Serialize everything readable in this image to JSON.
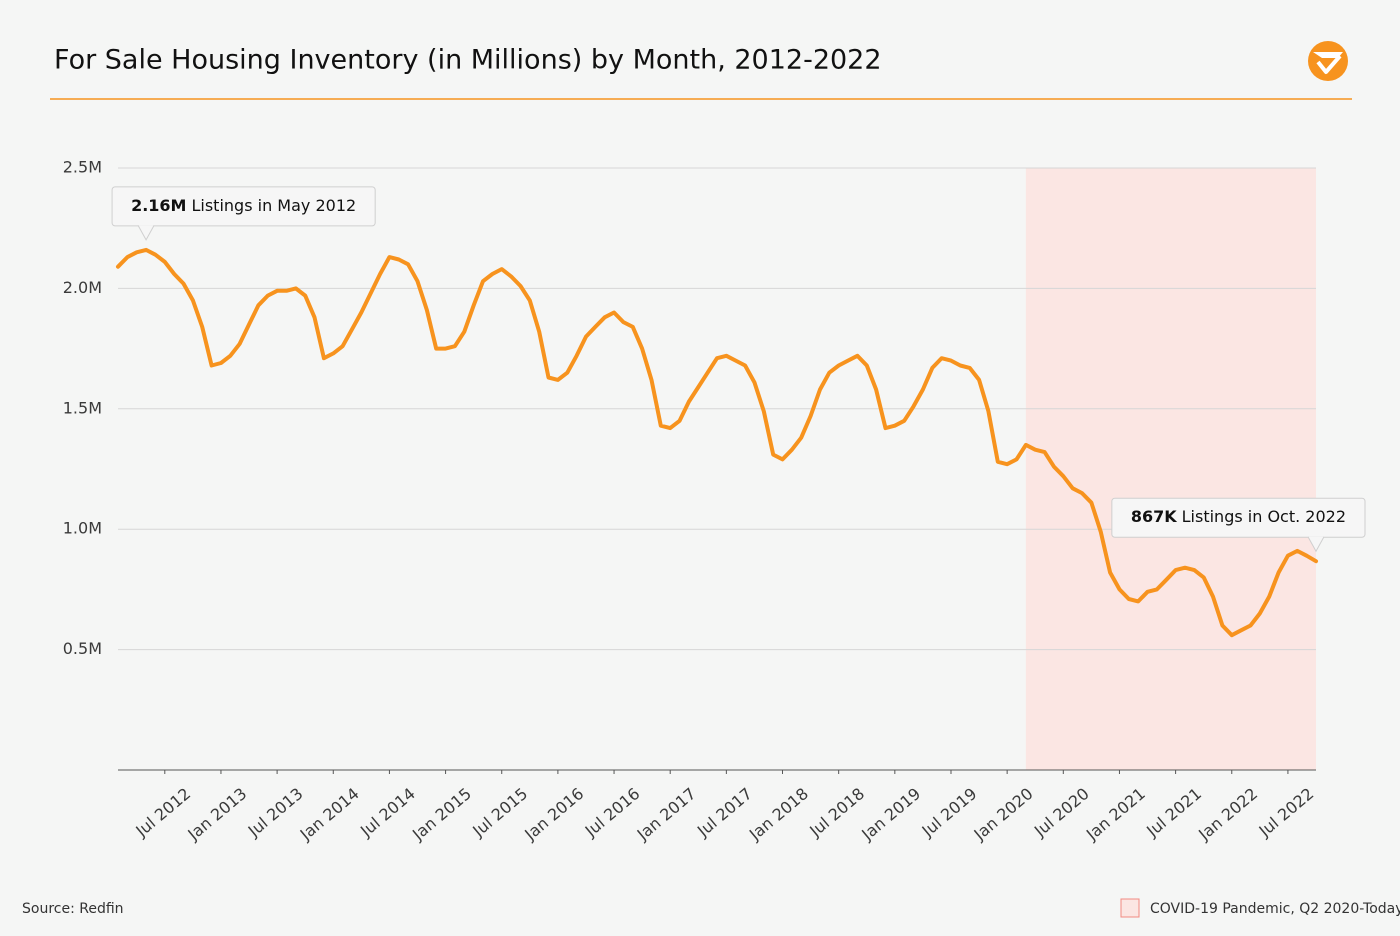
{
  "chart_data": {
    "type": "line",
    "title": "For Sale Housing Inventory (in Millions) by Month, 2012-2022",
    "source": "Source: Redfin",
    "x": [
      "2012-02",
      "2012-03",
      "2012-04",
      "2012-05",
      "2012-06",
      "2012-07",
      "2012-08",
      "2012-09",
      "2012-10",
      "2012-11",
      "2012-12",
      "2013-01",
      "2013-02",
      "2013-03",
      "2013-04",
      "2013-05",
      "2013-06",
      "2013-07",
      "2013-08",
      "2013-09",
      "2013-10",
      "2013-11",
      "2013-12",
      "2014-01",
      "2014-02",
      "2014-03",
      "2014-04",
      "2014-05",
      "2014-06",
      "2014-07",
      "2014-08",
      "2014-09",
      "2014-10",
      "2014-11",
      "2014-12",
      "2015-01",
      "2015-02",
      "2015-03",
      "2015-04",
      "2015-05",
      "2015-06",
      "2015-07",
      "2015-08",
      "2015-09",
      "2015-10",
      "2015-11",
      "2015-12",
      "2016-01",
      "2016-02",
      "2016-03",
      "2016-04",
      "2016-05",
      "2016-06",
      "2016-07",
      "2016-08",
      "2016-09",
      "2016-10",
      "2016-11",
      "2016-12",
      "2017-01",
      "2017-02",
      "2017-03",
      "2017-04",
      "2017-05",
      "2017-06",
      "2017-07",
      "2017-08",
      "2017-09",
      "2017-10",
      "2017-11",
      "2017-12",
      "2018-01",
      "2018-02",
      "2018-03",
      "2018-04",
      "2018-05",
      "2018-06",
      "2018-07",
      "2018-08",
      "2018-09",
      "2018-10",
      "2018-11",
      "2018-12",
      "2019-01",
      "2019-02",
      "2019-03",
      "2019-04",
      "2019-05",
      "2019-06",
      "2019-07",
      "2019-08",
      "2019-09",
      "2019-10",
      "2019-11",
      "2019-12",
      "2020-01",
      "2020-02",
      "2020-03",
      "2020-04",
      "2020-05",
      "2020-06",
      "2020-07",
      "2020-08",
      "2020-09",
      "2020-10",
      "2020-11",
      "2020-12",
      "2021-01",
      "2021-02",
      "2021-03",
      "2021-04",
      "2021-05",
      "2021-06",
      "2021-07",
      "2021-08",
      "2021-09",
      "2021-10",
      "2021-11",
      "2021-12",
      "2022-01",
      "2022-02",
      "2022-03",
      "2022-04",
      "2022-05",
      "2022-06",
      "2022-07",
      "2022-08",
      "2022-09",
      "2022-10"
    ],
    "series": [
      {
        "name": "For Sale Housing Inventory",
        "color": "#f7931e",
        "values": [
          2090000,
          2130000,
          2150000,
          2160000,
          2140000,
          2110000,
          2060000,
          2020000,
          1950000,
          1840000,
          1680000,
          1690000,
          1720000,
          1770000,
          1850000,
          1930000,
          1970000,
          1990000,
          1990000,
          2000000,
          1970000,
          1880000,
          1710000,
          1730000,
          1760000,
          1830000,
          1900000,
          1980000,
          2060000,
          2130000,
          2120000,
          2100000,
          2030000,
          1910000,
          1750000,
          1750000,
          1760000,
          1820000,
          1930000,
          2030000,
          2060000,
          2080000,
          2050000,
          2010000,
          1950000,
          1820000,
          1630000,
          1620000,
          1650000,
          1720000,
          1800000,
          1840000,
          1880000,
          1900000,
          1860000,
          1840000,
          1750000,
          1620000,
          1430000,
          1420000,
          1450000,
          1530000,
          1590000,
          1650000,
          1710000,
          1720000,
          1700000,
          1680000,
          1610000,
          1490000,
          1310000,
          1290000,
          1330000,
          1380000,
          1470000,
          1580000,
          1650000,
          1680000,
          1700000,
          1720000,
          1680000,
          1580000,
          1420000,
          1430000,
          1450000,
          1510000,
          1580000,
          1670000,
          1710000,
          1700000,
          1680000,
          1670000,
          1620000,
          1490000,
          1280000,
          1270000,
          1290000,
          1350000,
          1330000,
          1320000,
          1260000,
          1220000,
          1170000,
          1150000,
          1110000,
          990000,
          820000,
          750000,
          710000,
          700000,
          740000,
          750000,
          790000,
          830000,
          840000,
          830000,
          800000,
          720000,
          600000,
          560000,
          580000,
          600000,
          650000,
          720000,
          820000,
          890000,
          910000,
          890000,
          867000
        ]
      }
    ],
    "ylim": [
      0,
      2500000
    ],
    "yticks": [
      {
        "value": 500000,
        "label": "0.5M"
      },
      {
        "value": 1000000,
        "label": "1.0M"
      },
      {
        "value": 1500000,
        "label": "1.5M"
      },
      {
        "value": 2000000,
        "label": "2.0M"
      },
      {
        "value": 2500000,
        "label": "2.5M"
      }
    ],
    "xticks": [
      {
        "value": "2012-07",
        "label": "Jul 2012"
      },
      {
        "value": "2013-01",
        "label": "Jan 2013"
      },
      {
        "value": "2013-07",
        "label": "Jul 2013"
      },
      {
        "value": "2014-01",
        "label": "Jan 2014"
      },
      {
        "value": "2014-07",
        "label": "Jul 2014"
      },
      {
        "value": "2015-01",
        "label": "Jan 2015"
      },
      {
        "value": "2015-07",
        "label": "Jul 2015"
      },
      {
        "value": "2016-01",
        "label": "Jan 2016"
      },
      {
        "value": "2016-07",
        "label": "Jul 2016"
      },
      {
        "value": "2017-01",
        "label": "Jan 2017"
      },
      {
        "value": "2017-07",
        "label": "Jul 2017"
      },
      {
        "value": "2018-01",
        "label": "Jan 2018"
      },
      {
        "value": "2018-07",
        "label": "Jul 2018"
      },
      {
        "value": "2019-01",
        "label": "Jan 2019"
      },
      {
        "value": "2019-07",
        "label": "Jul 2019"
      },
      {
        "value": "2020-01",
        "label": "Jan 2020"
      },
      {
        "value": "2020-07",
        "label": "Jul 2020"
      },
      {
        "value": "2021-01",
        "label": "Jan 2021"
      },
      {
        "value": "2021-07",
        "label": "Jul 2021"
      },
      {
        "value": "2022-01",
        "label": "Jan 2022"
      },
      {
        "value": "2022-07",
        "label": "Jul 2022"
      }
    ],
    "grid": true,
    "shade": {
      "from": "2020-03",
      "to": "2022-10",
      "color": "#fbe6e3",
      "border": "#f28b82",
      "label": "COVID-19 Pandemic, Q2 2020-Today"
    },
    "annotations": [
      {
        "x": "2012-05",
        "value": 2160000,
        "bold": "2.16M",
        "text": "Listings in May 2012"
      },
      {
        "x": "2022-10",
        "value": 867000,
        "bold": "867K",
        "text": "Listings in Oct. 2022"
      }
    ]
  }
}
